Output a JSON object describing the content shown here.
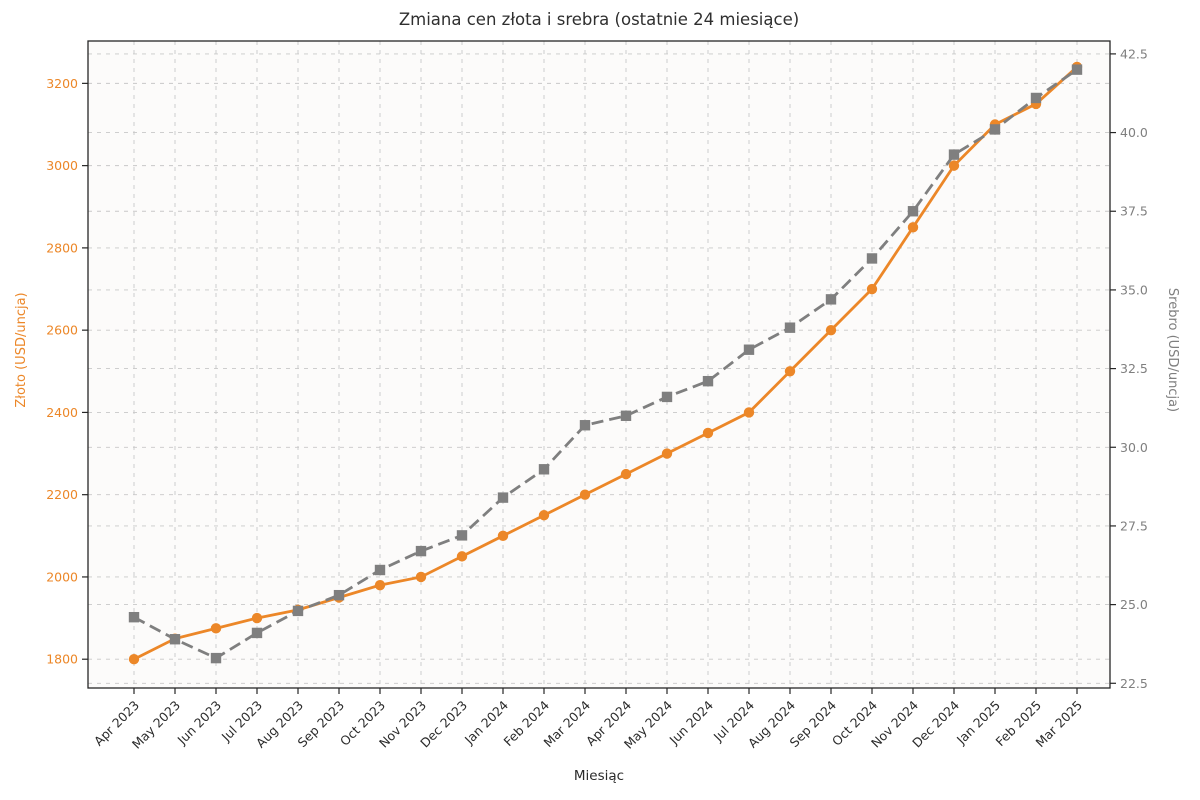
{
  "chart_data": {
    "type": "line",
    "title": "Zmiana cen złota i srebra (ostatnie 24 miesiące)",
    "xlabel": "Miesiąc",
    "ylabel_left": "Złoto (USD/uncja)",
    "ylabel_right": "Srebro (USD/uncja)",
    "categories": [
      "Apr 2023",
      "May 2023",
      "Jun 2023",
      "Jul 2023",
      "Aug 2023",
      "Sep 2023",
      "Oct 2023",
      "Nov 2023",
      "Dec 2023",
      "Jan 2024",
      "Feb 2024",
      "Mar 2024",
      "Apr 2024",
      "May 2024",
      "Jun 2024",
      "Jul 2024",
      "Aug 2024",
      "Sep 2024",
      "Oct 2024",
      "Nov 2024",
      "Dec 2024",
      "Jan 2025",
      "Feb 2025",
      "Mar 2025"
    ],
    "series": [
      {
        "name": "Złoto (USD/uncja)",
        "axis": "left",
        "color": "#ec8728",
        "marker": "circle",
        "linestyle": "solid",
        "values": [
          1800,
          1850,
          1875,
          1900,
          1920,
          1950,
          1980,
          2000,
          2050,
          2100,
          2150,
          2200,
          2250,
          2300,
          2350,
          2400,
          2500,
          2600,
          2700,
          2850,
          3000,
          3100,
          3150,
          3240
        ]
      },
      {
        "name": "Srebro (USD/uncja)",
        "axis": "right",
        "color": "#7f7f7f",
        "marker": "square",
        "linestyle": "dashed",
        "values": [
          24.6,
          23.9,
          23.3,
          24.1,
          24.8,
          25.3,
          26.1,
          26.7,
          27.2,
          28.4,
          29.3,
          30.7,
          31.0,
          31.6,
          32.1,
          33.1,
          33.8,
          34.7,
          36.0,
          37.5,
          39.3,
          40.1,
          41.1,
          42.0
        ]
      }
    ],
    "left_ticks": [
      1800,
      2000,
      2200,
      2400,
      2600,
      2800,
      3000,
      3200
    ],
    "right_ticks": [
      22.5,
      25.0,
      27.5,
      30.0,
      32.5,
      35.0,
      37.5,
      40.0,
      42.5
    ],
    "ylim_left": [
      1730,
      3303
    ],
    "ylim_right": [
      22.35,
      42.91
    ],
    "grid": true,
    "legend": false
  },
  "colors": {
    "gold": "#ec8728",
    "silver": "#7f7f7f",
    "grid": "#c8c8c8",
    "spine": "#262626",
    "tick_label": "#2b2b2b",
    "plot_bg": "#fcfbfa"
  }
}
